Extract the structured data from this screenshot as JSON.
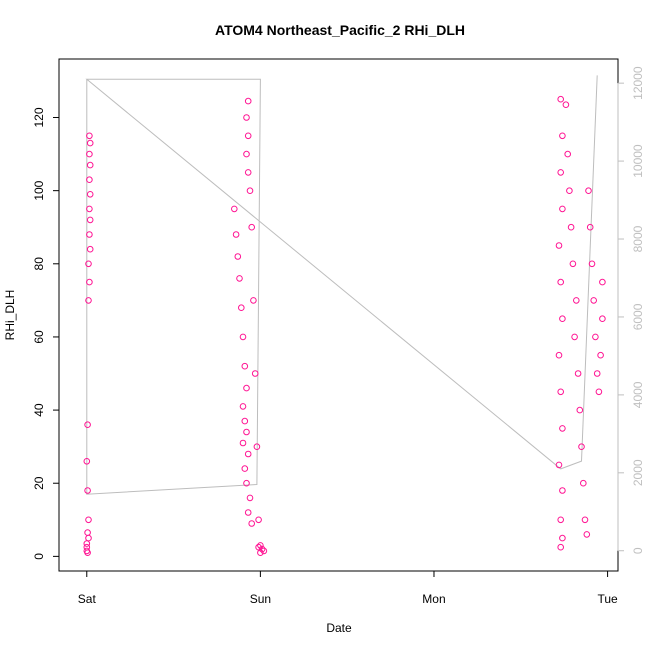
{
  "chart_data": {
    "type": "scatter",
    "title": "ATOM4 Northeast_Pacific_2 RHi_DLH",
    "xlabel": "Date",
    "ylabel": "RHi_DLH",
    "x_ticks": [
      "Sat",
      "Sun",
      "Mon",
      "Tue"
    ],
    "x_tick_values": [
      0,
      1,
      2,
      3
    ],
    "xlim": [
      -0.16,
      3.06
    ],
    "ylim": [
      -4,
      136
    ],
    "y_ticks": [
      0,
      20,
      40,
      60,
      80,
      100,
      120
    ],
    "y2lim": [
      -520,
      12620
    ],
    "y2_ticks": [
      0,
      2000,
      4000,
      6000,
      8000,
      10000,
      12000
    ],
    "point_color": "#ff1493",
    "line_color": "#bdbdbd",
    "series": [
      {
        "values": [
          {
            "x": 0.0,
            "y": 1.5
          },
          {
            "x": 0.0,
            "y": 2.5
          },
          {
            "x": 0.005,
            "y": 1.0
          },
          {
            "x": 0.0,
            "y": 3.5
          },
          {
            "x": 0.01,
            "y": 5.0
          },
          {
            "x": 0.005,
            "y": 6.5
          },
          {
            "x": 0.01,
            "y": 10.0
          },
          {
            "x": 0.005,
            "y": 18.0
          },
          {
            "x": 0.0,
            "y": 26.0
          },
          {
            "x": 0.005,
            "y": 36.0
          },
          {
            "x": 0.01,
            "y": 70.0
          },
          {
            "x": 0.015,
            "y": 75.0
          },
          {
            "x": 0.01,
            "y": 80.0
          },
          {
            "x": 0.02,
            "y": 84.0
          },
          {
            "x": 0.015,
            "y": 88.0
          },
          {
            "x": 0.02,
            "y": 92.0
          },
          {
            "x": 0.015,
            "y": 95.0
          },
          {
            "x": 0.02,
            "y": 99.0
          },
          {
            "x": 0.015,
            "y": 103.0
          },
          {
            "x": 0.02,
            "y": 107.0
          },
          {
            "x": 0.015,
            "y": 110.0
          },
          {
            "x": 0.02,
            "y": 113.0
          },
          {
            "x": 0.015,
            "y": 115.0
          },
          {
            "x": 0.85,
            "y": 95.0
          },
          {
            "x": 0.86,
            "y": 88.0
          },
          {
            "x": 0.87,
            "y": 82.0
          },
          {
            "x": 0.88,
            "y": 76.0
          },
          {
            "x": 0.89,
            "y": 68.0
          },
          {
            "x": 0.9,
            "y": 60.0
          },
          {
            "x": 0.91,
            "y": 52.0
          },
          {
            "x": 0.92,
            "y": 46.0
          },
          {
            "x": 0.9,
            "y": 41.0
          },
          {
            "x": 0.91,
            "y": 37.0
          },
          {
            "x": 0.92,
            "y": 34.0
          },
          {
            "x": 0.9,
            "y": 31.0
          },
          {
            "x": 0.93,
            "y": 28.0
          },
          {
            "x": 0.91,
            "y": 24.0
          },
          {
            "x": 0.92,
            "y": 20.0
          },
          {
            "x": 0.94,
            "y": 16.0
          },
          {
            "x": 0.93,
            "y": 12.0
          },
          {
            "x": 0.95,
            "y": 9.0
          },
          {
            "x": 0.94,
            "y": 100.0
          },
          {
            "x": 0.93,
            "y": 105.0
          },
          {
            "x": 0.92,
            "y": 110.0
          },
          {
            "x": 0.93,
            "y": 115.0
          },
          {
            "x": 0.92,
            "y": 120.0
          },
          {
            "x": 0.93,
            "y": 124.5
          },
          {
            "x": 0.95,
            "y": 90.0
          },
          {
            "x": 0.96,
            "y": 70.0
          },
          {
            "x": 0.97,
            "y": 50.0
          },
          {
            "x": 0.98,
            "y": 30.0
          },
          {
            "x": 0.99,
            "y": 10.0
          },
          {
            "x": 1.0,
            "y": 3.0
          },
          {
            "x": 1.01,
            "y": 2.0
          },
          {
            "x": 0.99,
            "y": 2.5
          },
          {
            "x": 1.02,
            "y": 1.5
          },
          {
            "x": 1.0,
            "y": 1.0
          },
          {
            "x": 2.73,
            "y": 2.5
          },
          {
            "x": 2.74,
            "y": 5.0
          },
          {
            "x": 2.73,
            "y": 10.0
          },
          {
            "x": 2.74,
            "y": 18.0
          },
          {
            "x": 2.72,
            "y": 25.0
          },
          {
            "x": 2.74,
            "y": 35.0
          },
          {
            "x": 2.73,
            "y": 45.0
          },
          {
            "x": 2.72,
            "y": 55.0
          },
          {
            "x": 2.74,
            "y": 65.0
          },
          {
            "x": 2.73,
            "y": 75.0
          },
          {
            "x": 2.72,
            "y": 85.0
          },
          {
            "x": 2.74,
            "y": 95.0
          },
          {
            "x": 2.73,
            "y": 105.0
          },
          {
            "x": 2.74,
            "y": 115.0
          },
          {
            "x": 2.73,
            "y": 125.0
          },
          {
            "x": 2.76,
            "y": 123.5
          },
          {
            "x": 2.77,
            "y": 110.0
          },
          {
            "x": 2.78,
            "y": 100.0
          },
          {
            "x": 2.79,
            "y": 90.0
          },
          {
            "x": 2.8,
            "y": 80.0
          },
          {
            "x": 2.82,
            "y": 70.0
          },
          {
            "x": 2.81,
            "y": 60.0
          },
          {
            "x": 2.83,
            "y": 50.0
          },
          {
            "x": 2.84,
            "y": 40.0
          },
          {
            "x": 2.85,
            "y": 30.0
          },
          {
            "x": 2.86,
            "y": 20.0
          },
          {
            "x": 2.87,
            "y": 10.0
          },
          {
            "x": 2.88,
            "y": 6.0
          },
          {
            "x": 2.89,
            "y": 100.0
          },
          {
            "x": 2.9,
            "y": 90.0
          },
          {
            "x": 2.91,
            "y": 80.0
          },
          {
            "x": 2.92,
            "y": 70.0
          },
          {
            "x": 2.93,
            "y": 60.0
          },
          {
            "x": 2.94,
            "y": 50.0
          },
          {
            "x": 2.95,
            "y": 45.0
          },
          {
            "x": 2.96,
            "y": 55.0
          },
          {
            "x": 2.97,
            "y": 65.0
          },
          {
            "x": 2.97,
            "y": 75.0
          }
        ]
      }
    ],
    "altitude_trace": [
      {
        "x": 0.0,
        "y2": 12100
      },
      {
        "x": 0.0,
        "y2": 1450
      },
      {
        "x": 0.98,
        "y2": 1700
      },
      {
        "x": 1.0,
        "y2": 12100
      },
      {
        "x": 0.0,
        "y2": 12100
      },
      {
        "x": 2.73,
        "y2": 2100
      },
      {
        "x": 2.85,
        "y2": 2300
      },
      {
        "x": 2.94,
        "y2": 12200
      }
    ]
  }
}
